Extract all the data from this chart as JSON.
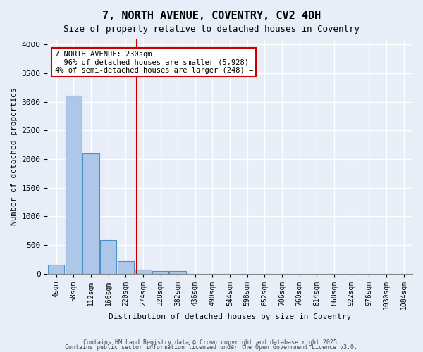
{
  "title": "7, NORTH AVENUE, COVENTRY, CV2 4DH",
  "subtitle": "Size of property relative to detached houses in Coventry",
  "xlabel": "Distribution of detached houses by size in Coventry",
  "ylabel": "Number of detached properties",
  "bar_color": "#aec6e8",
  "bar_edge_color": "#4a90c4",
  "background_color": "#e8eef8",
  "grid_color": "#ffffff",
  "bin_labels": [
    "4sqm",
    "58sqm",
    "112sqm",
    "166sqm",
    "220sqm",
    "274sqm",
    "328sqm",
    "382sqm",
    "436sqm",
    "490sqm",
    "544sqm",
    "598sqm",
    "652sqm",
    "706sqm",
    "760sqm",
    "814sqm",
    "868sqm",
    "922sqm",
    "976sqm",
    "1030sqm",
    "1084sqm"
  ],
  "bar_heights": [
    150,
    3100,
    2100,
    580,
    220,
    70,
    50,
    40,
    0,
    0,
    0,
    0,
    0,
    0,
    0,
    0,
    0,
    0,
    0,
    0,
    0
  ],
  "ylim": [
    0,
    4100
  ],
  "yticks": [
    0,
    500,
    1000,
    1500,
    2000,
    2500,
    3000,
    3500,
    4000
  ],
  "vline_x": 4.62,
  "vline_color": "#cc0000",
  "annotation_text": "7 NORTH AVENUE: 230sqm\n← 96% of detached houses are smaller (5,928)\n4% of semi-detached houses are larger (248) →",
  "annotation_box_color": "#cc0000",
  "footer_line1": "Contains HM Land Registry data © Crown copyright and database right 2025.",
  "footer_line2": "Contains public sector information licensed under the Open Government Licence v3.0."
}
